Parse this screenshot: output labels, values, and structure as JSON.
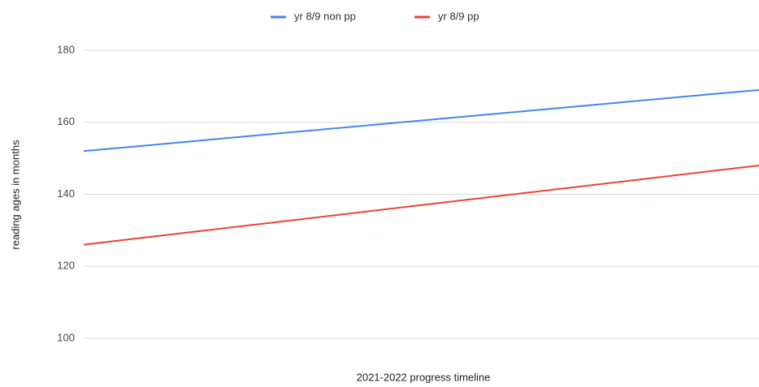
{
  "chart_data": {
    "type": "line",
    "x_label": "2021-2022 progress timeline",
    "y_label": "reading ages in months",
    "categories": [
      null,
      null
    ],
    "series": [
      {
        "name": "yr 8/9 non pp",
        "color": "#4285f4",
        "values": [
          152,
          169
        ]
      },
      {
        "name": "yr 8/9 pp",
        "color": "#ea4335",
        "values": [
          126,
          148
        ]
      }
    ],
    "ylim": [
      100,
      180
    ],
    "yticks": [
      100,
      120,
      140,
      160,
      180
    ],
    "grid": true,
    "legend": "top"
  }
}
